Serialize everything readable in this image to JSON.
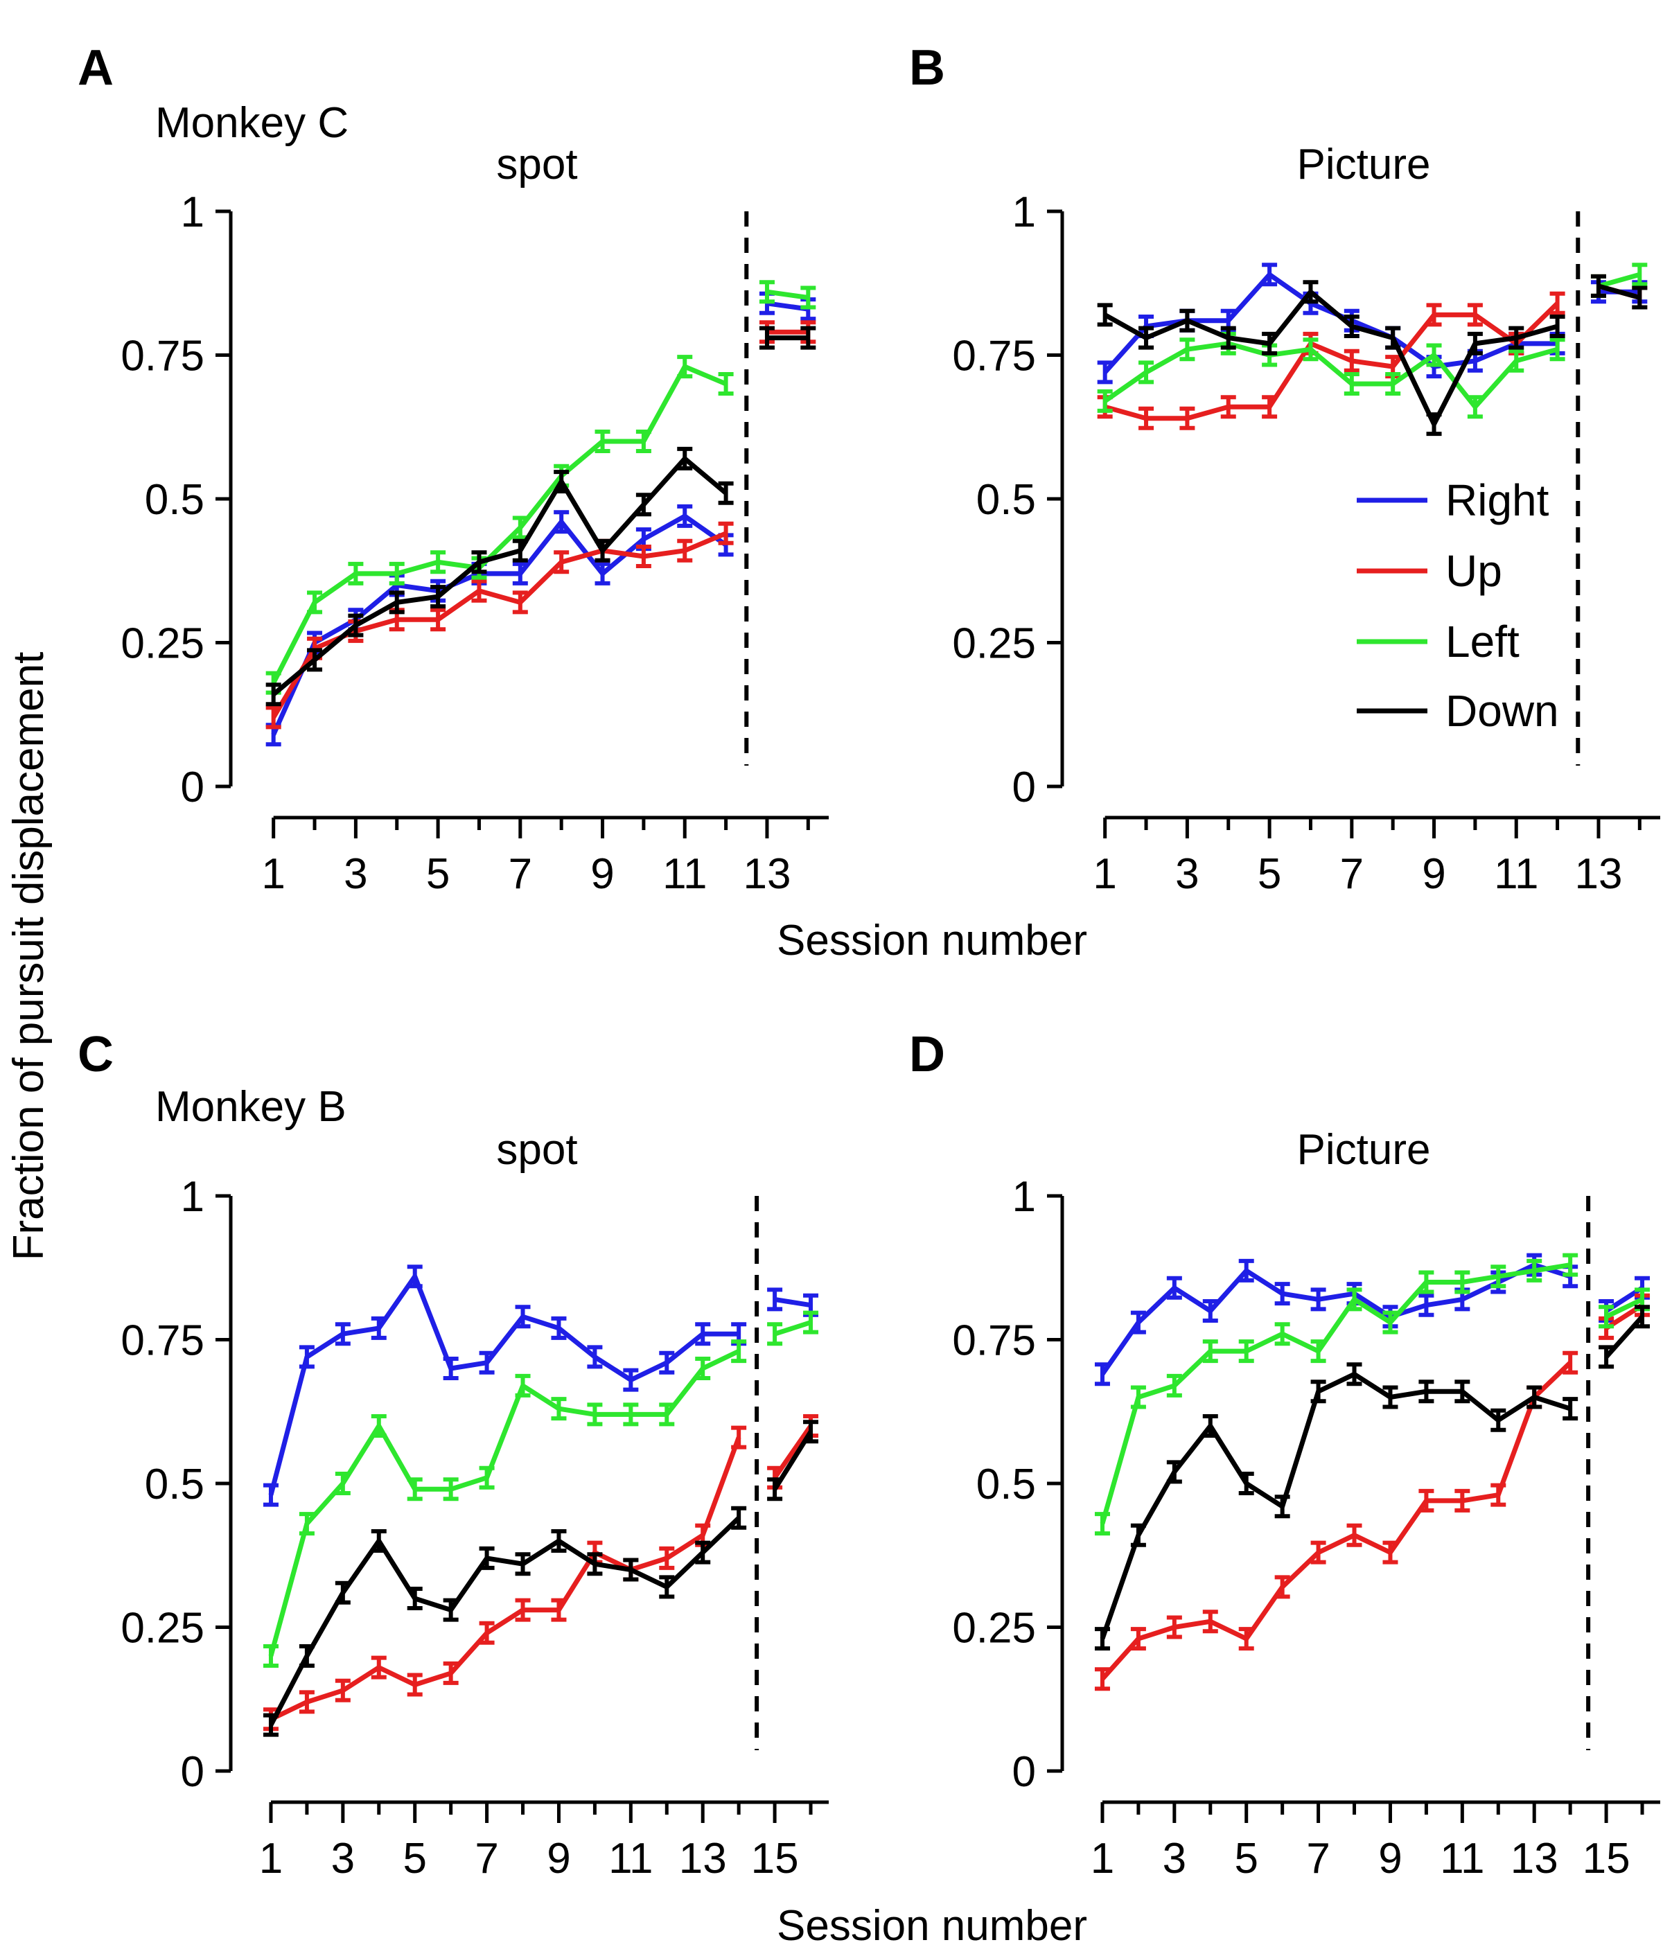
{
  "figure": {
    "ylabel": "Fraction of pursuit displacement",
    "series_colors": {
      "Right": "#1f1fe6",
      "Up": "#e61f1f",
      "Left": "#2ee62e",
      "Down": "#000000"
    },
    "legend": [
      "Right",
      "Up",
      "Left",
      "Down"
    ]
  },
  "chart_data": [
    {
      "type": "line",
      "panel": "A",
      "monkey": "Monkey C",
      "title": "spot",
      "xlabel": "Session number",
      "ylabel": "Fraction of pursuit displacement",
      "xlim": [
        0.5,
        14.5
      ],
      "ylim": [
        0,
        1
      ],
      "yticks": [
        "0",
        "0.25",
        "0.5",
        "0.75",
        "1"
      ],
      "xticks": [
        "1",
        "3",
        "5",
        "7",
        "9",
        "11",
        "13"
      ],
      "divider_after_session": 12,
      "series": [
        {
          "name": "Right",
          "x": [
            1,
            2,
            3,
            4,
            5,
            6,
            7,
            8,
            9,
            10,
            11,
            12
          ],
          "values": [
            0.09,
            0.25,
            0.29,
            0.35,
            0.34,
            0.37,
            0.37,
            0.46,
            0.37,
            0.43,
            0.47,
            0.42
          ],
          "post_x": [
            13,
            14
          ],
          "post_values": [
            0.84,
            0.83
          ]
        },
        {
          "name": "Up",
          "x": [
            1,
            2,
            3,
            4,
            5,
            6,
            7,
            8,
            9,
            10,
            11,
            12
          ],
          "values": [
            0.12,
            0.24,
            0.27,
            0.29,
            0.29,
            0.34,
            0.32,
            0.39,
            0.41,
            0.4,
            0.41,
            0.44
          ],
          "post_x": [
            13,
            14
          ],
          "post_values": [
            0.79,
            0.79
          ]
        },
        {
          "name": "Left",
          "x": [
            1,
            2,
            3,
            4,
            5,
            6,
            7,
            8,
            9,
            10,
            11,
            12
          ],
          "values": [
            0.18,
            0.32,
            0.37,
            0.37,
            0.39,
            0.38,
            0.45,
            0.54,
            0.6,
            0.6,
            0.73,
            0.7
          ],
          "post_x": [
            13,
            14
          ],
          "post_values": [
            0.86,
            0.85
          ]
        },
        {
          "name": "Down",
          "x": [
            1,
            2,
            3,
            4,
            5,
            6,
            7,
            8,
            9,
            10,
            11,
            12
          ],
          "values": [
            0.16,
            0.22,
            0.28,
            0.32,
            0.33,
            0.39,
            0.41,
            0.53,
            0.41,
            0.49,
            0.57,
            0.51
          ],
          "post_x": [
            13,
            14
          ],
          "post_values": [
            0.78,
            0.78
          ]
        }
      ]
    },
    {
      "type": "line",
      "panel": "B",
      "monkey": "",
      "title": "Picture",
      "xlabel": "Session number",
      "ylabel": "",
      "xlim": [
        0.5,
        14.5
      ],
      "ylim": [
        0,
        1
      ],
      "yticks": [
        "0",
        "0.25",
        "0.5",
        "0.75",
        "1"
      ],
      "xticks": [
        "1",
        "3",
        "5",
        "7",
        "9",
        "11",
        "13"
      ],
      "divider_after_session": 12,
      "series": [
        {
          "name": "Right",
          "x": [
            1,
            2,
            3,
            4,
            5,
            6,
            7,
            8,
            9,
            10,
            11,
            12
          ],
          "values": [
            0.72,
            0.8,
            0.81,
            0.81,
            0.89,
            0.84,
            0.81,
            0.78,
            0.73,
            0.74,
            0.77,
            0.77
          ],
          "post_x": [
            13,
            14
          ],
          "post_values": [
            0.86,
            0.86
          ]
        },
        {
          "name": "Up",
          "x": [
            1,
            2,
            3,
            4,
            5,
            6,
            7,
            8,
            9,
            10,
            11,
            12
          ],
          "values": [
            0.66,
            0.64,
            0.64,
            0.66,
            0.66,
            0.77,
            0.74,
            0.73,
            0.82,
            0.82,
            0.77,
            0.84
          ],
          "post_x": [
            13,
            14
          ],
          "post_values": [
            0.87,
            0.85
          ]
        },
        {
          "name": "Left",
          "x": [
            1,
            2,
            3,
            4,
            5,
            6,
            7,
            8,
            9,
            10,
            11,
            12
          ],
          "values": [
            0.67,
            0.72,
            0.76,
            0.77,
            0.75,
            0.76,
            0.7,
            0.7,
            0.75,
            0.66,
            0.74,
            0.76
          ],
          "post_x": [
            13,
            14
          ],
          "post_values": [
            0.87,
            0.89
          ]
        },
        {
          "name": "Down",
          "x": [
            1,
            2,
            3,
            4,
            5,
            6,
            7,
            8,
            9,
            10,
            11,
            12
          ],
          "values": [
            0.82,
            0.78,
            0.81,
            0.78,
            0.77,
            0.86,
            0.8,
            0.78,
            0.63,
            0.77,
            0.78,
            0.8
          ],
          "post_x": [
            13,
            14
          ],
          "post_values": [
            0.87,
            0.85
          ]
        }
      ]
    },
    {
      "type": "line",
      "panel": "C",
      "monkey": "Monkey B",
      "title": "spot",
      "xlabel": "Session number",
      "ylabel": "Fraction of pursuit displacement",
      "xlim": [
        0.5,
        16.5
      ],
      "ylim": [
        0,
        1
      ],
      "yticks": [
        "0",
        "0.25",
        "0.5",
        "0.75",
        "1"
      ],
      "xticks": [
        "1",
        "3",
        "5",
        "7",
        "9",
        "11",
        "13",
        "15"
      ],
      "divider_after_session": 14,
      "series": [
        {
          "name": "Right",
          "x": [
            1,
            2,
            3,
            4,
            5,
            6,
            7,
            8,
            9,
            10,
            11,
            12,
            13,
            14
          ],
          "values": [
            0.48,
            0.72,
            0.76,
            0.77,
            0.86,
            0.7,
            0.71,
            0.79,
            0.77,
            0.72,
            0.68,
            0.71,
            0.76,
            0.76
          ],
          "post_x": [
            15,
            16
          ],
          "post_values": [
            0.82,
            0.81
          ]
        },
        {
          "name": "Up",
          "x": [
            1,
            2,
            3,
            4,
            5,
            6,
            7,
            8,
            9,
            10,
            11,
            12,
            13,
            14
          ],
          "values": [
            0.09,
            0.12,
            0.14,
            0.18,
            0.15,
            0.17,
            0.24,
            0.28,
            0.28,
            0.38,
            0.35,
            0.37,
            0.41,
            0.58
          ],
          "post_x": [
            15,
            16
          ],
          "post_values": [
            0.51,
            0.6
          ]
        },
        {
          "name": "Left",
          "x": [
            1,
            2,
            3,
            4,
            5,
            6,
            7,
            8,
            9,
            10,
            11,
            12,
            13,
            14
          ],
          "values": [
            0.2,
            0.43,
            0.5,
            0.6,
            0.49,
            0.49,
            0.51,
            0.67,
            0.63,
            0.62,
            0.62,
            0.62,
            0.7,
            0.73
          ],
          "post_x": [
            15,
            16
          ],
          "post_values": [
            0.76,
            0.78
          ]
        },
        {
          "name": "Down",
          "x": [
            1,
            2,
            3,
            4,
            5,
            6,
            7,
            8,
            9,
            10,
            11,
            12,
            13,
            14
          ],
          "values": [
            0.08,
            0.2,
            0.31,
            0.4,
            0.3,
            0.28,
            0.37,
            0.36,
            0.4,
            0.36,
            0.35,
            0.32,
            0.38,
            0.44
          ],
          "post_x": [
            15,
            16
          ],
          "post_values": [
            0.49,
            0.59
          ]
        }
      ]
    },
    {
      "type": "line",
      "panel": "D",
      "monkey": "",
      "title": "Picture",
      "xlabel": "Session number",
      "ylabel": "",
      "xlim": [
        0.5,
        16.5
      ],
      "ylim": [
        0,
        1
      ],
      "yticks": [
        "0",
        "0.25",
        "0.5",
        "0.75",
        "1"
      ],
      "xticks": [
        "1",
        "3",
        "5",
        "7",
        "9",
        "11",
        "13",
        "15"
      ],
      "divider_after_session": 14,
      "series": [
        {
          "name": "Right",
          "x": [
            1,
            2,
            3,
            4,
            5,
            6,
            7,
            8,
            9,
            10,
            11,
            12,
            13,
            14
          ],
          "values": [
            0.69,
            0.78,
            0.84,
            0.8,
            0.87,
            0.83,
            0.82,
            0.83,
            0.79,
            0.81,
            0.82,
            0.85,
            0.88,
            0.86
          ],
          "post_x": [
            15,
            16
          ],
          "post_values": [
            0.8,
            0.84
          ]
        },
        {
          "name": "Up",
          "x": [
            1,
            2,
            3,
            4,
            5,
            6,
            7,
            8,
            9,
            10,
            11,
            12,
            13,
            14
          ],
          "values": [
            0.16,
            0.23,
            0.25,
            0.26,
            0.23,
            0.32,
            0.38,
            0.41,
            0.38,
            0.47,
            0.47,
            0.48,
            0.65,
            0.71
          ],
          "post_x": [
            15,
            16
          ],
          "post_values": [
            0.77,
            0.81
          ]
        },
        {
          "name": "Left",
          "x": [
            1,
            2,
            3,
            4,
            5,
            6,
            7,
            8,
            9,
            10,
            11,
            12,
            13,
            14
          ],
          "values": [
            0.43,
            0.65,
            0.67,
            0.73,
            0.73,
            0.76,
            0.73,
            0.82,
            0.78,
            0.85,
            0.85,
            0.86,
            0.87,
            0.88
          ],
          "post_x": [
            15,
            16
          ],
          "post_values": [
            0.79,
            0.82
          ]
        },
        {
          "name": "Down",
          "x": [
            1,
            2,
            3,
            4,
            5,
            6,
            7,
            8,
            9,
            10,
            11,
            12,
            13,
            14
          ],
          "values": [
            0.23,
            0.41,
            0.52,
            0.6,
            0.5,
            0.46,
            0.66,
            0.69,
            0.65,
            0.66,
            0.66,
            0.61,
            0.65,
            0.63
          ],
          "post_x": [
            15,
            16
          ],
          "post_values": [
            0.72,
            0.79
          ]
        }
      ]
    }
  ]
}
